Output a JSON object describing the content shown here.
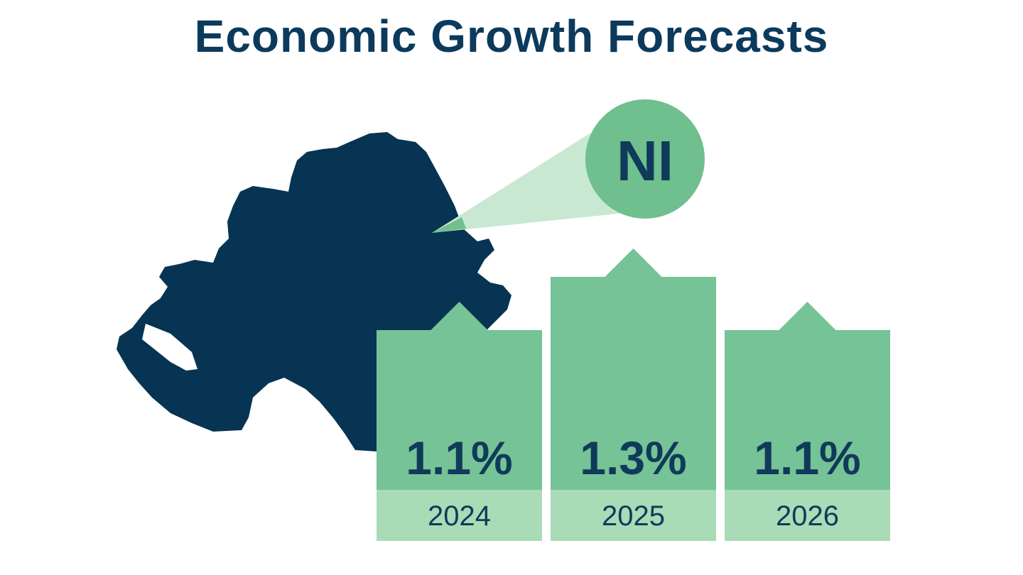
{
  "title": "Economic Growth Forecasts",
  "region_badge": "NI",
  "colors": {
    "title": "#0b3a5c",
    "map": "#063452",
    "bar": "#75c396",
    "bar_label": "#a9dbb6",
    "callout": "#c9e8d2",
    "badge": "#6fbf8f",
    "text_dark": "#103a5a"
  },
  "chart_data": {
    "type": "bar",
    "categories": [
      "2024",
      "2025",
      "2026"
    ],
    "values": [
      1.1,
      1.3,
      1.1
    ],
    "value_labels": [
      "1.1%",
      "1.3%",
      "1.1%"
    ],
    "title": "Economic Growth Forecasts"
  }
}
